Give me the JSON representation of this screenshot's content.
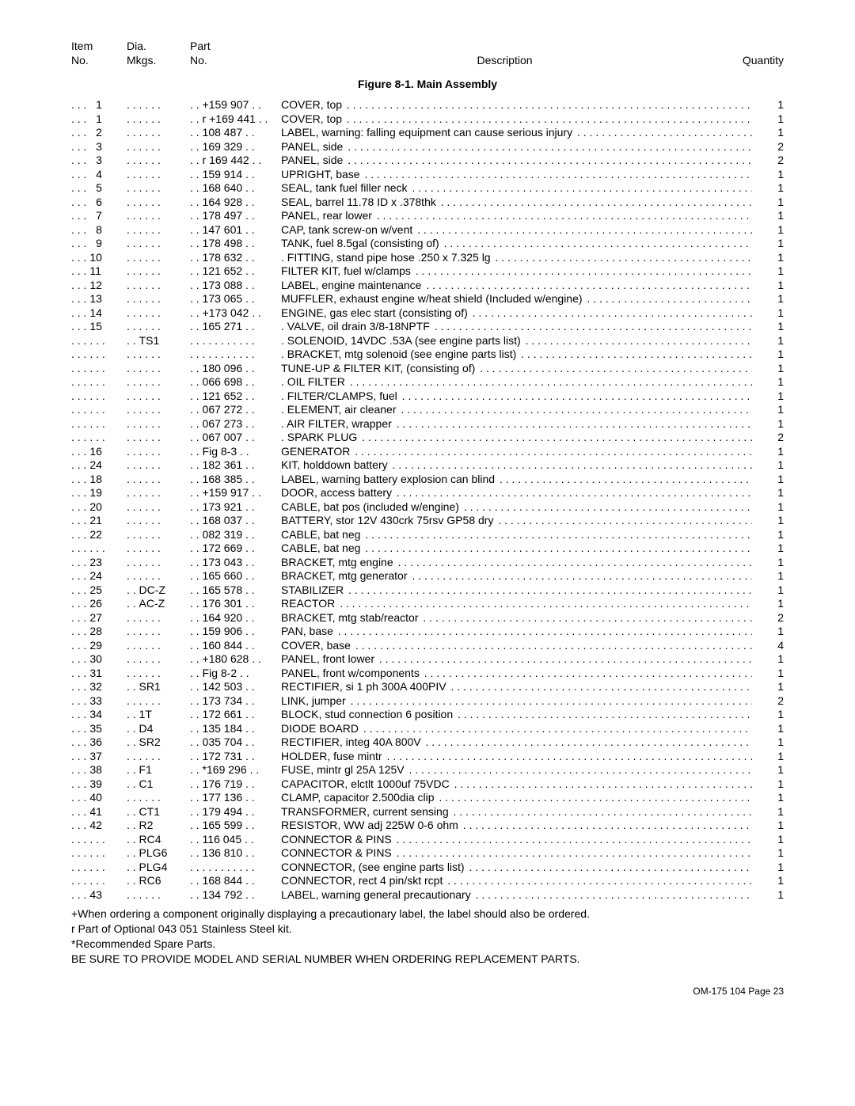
{
  "header": {
    "item1": "Item",
    "item2": "No.",
    "dia1": "Dia.",
    "dia2": "Mkgs.",
    "part1": "Part",
    "part2": "No.",
    "desc": "Description",
    "qty": "Quantity"
  },
  "figure_title": "Figure 8-1. Main Assembly",
  "rows": [
    {
      "item": "1",
      "dia": "",
      "part": "+159 907",
      "desc": "COVER, top",
      "qty": "1"
    },
    {
      "item": "1",
      "dia": "",
      "part": "r +169 441",
      "desc": "COVER, top",
      "qty": "1"
    },
    {
      "item": "2",
      "dia": "",
      "part": "108 487",
      "desc": "LABEL, warning: falling equipment can cause serious injury",
      "qty": "1"
    },
    {
      "item": "3",
      "dia": "",
      "part": "169 329",
      "desc": "PANEL, side",
      "qty": "2"
    },
    {
      "item": "3",
      "dia": "",
      "part": "r 169 442",
      "desc": "PANEL, side",
      "qty": "2"
    },
    {
      "item": "4",
      "dia": "",
      "part": "159 914",
      "desc": "UPRIGHT, base",
      "qty": "1"
    },
    {
      "item": "5",
      "dia": "",
      "part": "168 640",
      "desc": "SEAL, tank fuel filler neck",
      "qty": "1"
    },
    {
      "item": "6",
      "dia": "",
      "part": "164 928",
      "desc": "SEAL, barrel 11.78 ID x .378thk",
      "qty": "1"
    },
    {
      "item": "7",
      "dia": "",
      "part": "178 497",
      "desc": "PANEL, rear lower",
      "qty": "1"
    },
    {
      "item": "8",
      "dia": "",
      "part": "147 601",
      "desc": "CAP, tank screw-on w/vent",
      "qty": "1"
    },
    {
      "item": "9",
      "dia": "",
      "part": "178 498",
      "desc": "TANK, fuel 8.5gal (consisting of)",
      "qty": "1"
    },
    {
      "item": "10",
      "dia": "",
      "part": "178 632",
      "desc": ". FITTING, stand pipe hose .250 x 7.325 lg",
      "qty": "1"
    },
    {
      "item": "11",
      "dia": "",
      "part": "121 652",
      "desc": "FILTER KIT, fuel w/clamps",
      "qty": "1"
    },
    {
      "item": "12",
      "dia": "",
      "part": "173 088",
      "desc": "LABEL, engine maintenance",
      "qty": "1"
    },
    {
      "item": "13",
      "dia": "",
      "part": "173 065",
      "desc": "MUFFLER, exhaust engine w/heat shield (Included w/engine)",
      "qty": "1"
    },
    {
      "item": "14",
      "dia": "",
      "part": "+173 042",
      "desc": "ENGINE, gas elec start (consisting of)",
      "qty": "1"
    },
    {
      "item": "15",
      "dia": "",
      "part": "165 271",
      "desc": ". VALVE, oil drain 3/8-18NPTF",
      "qty": "1"
    },
    {
      "item": "",
      "dia": "TS1",
      "part": "",
      "desc": ". SOLENOID, 14VDC .53A (see engine parts list)",
      "qty": "1"
    },
    {
      "item": "",
      "dia": "",
      "part": "",
      "desc": ". BRACKET, mtg solenoid (see engine parts list)",
      "qty": "1"
    },
    {
      "item": "",
      "dia": "",
      "part": "180 096",
      "desc": "TUNE-UP & FILTER KIT, (consisting of)",
      "qty": "1"
    },
    {
      "item": "",
      "dia": "",
      "part": "066 698",
      "desc": ". OIL FILTER",
      "qty": "1"
    },
    {
      "item": "",
      "dia": "",
      "part": "121 652",
      "desc": ". FILTER/CLAMPS, fuel",
      "qty": "1"
    },
    {
      "item": "",
      "dia": "",
      "part": "067 272",
      "desc": ". ELEMENT, air cleaner",
      "qty": "1"
    },
    {
      "item": "",
      "dia": "",
      "part": "067 273",
      "desc": ". AIR FILTER, wrapper",
      "qty": "1"
    },
    {
      "item": "",
      "dia": "",
      "part": "067 007",
      "desc": ". SPARK PLUG",
      "qty": "2"
    },
    {
      "item": "16",
      "dia": "",
      "part": "Fig 8-3",
      "desc": "GENERATOR",
      "qty": "1"
    },
    {
      "item": "24",
      "dia": "",
      "part": "182 361",
      "desc": "KIT, holddown battery",
      "qty": "1"
    },
    {
      "item": "18",
      "dia": "",
      "part": "168 385",
      "desc": "LABEL, warning battery explosion can blind",
      "qty": "1"
    },
    {
      "item": "19",
      "dia": "",
      "part": "+159 917",
      "desc": "DOOR, access battery",
      "qty": "1"
    },
    {
      "item": "20",
      "dia": "",
      "part": "173 921",
      "desc": "CABLE, bat pos (included w/engine)",
      "qty": "1"
    },
    {
      "item": "21",
      "dia": "",
      "part": "168 037",
      "desc": "BATTERY, stor 12V 430crk 75rsv GP58 dry",
      "qty": "1"
    },
    {
      "item": "22",
      "dia": "",
      "part": "082 319",
      "desc": "CABLE, bat neg",
      "qty": "1"
    },
    {
      "item": "",
      "dia": "",
      "part": "172 669",
      "desc": "CABLE, bat neg",
      "qty": "1"
    },
    {
      "item": "23",
      "dia": "",
      "part": "173 043",
      "desc": "BRACKET, mtg engine",
      "qty": "1"
    },
    {
      "item": "24",
      "dia": "",
      "part": "165 660",
      "desc": "BRACKET, mtg generator",
      "qty": "1"
    },
    {
      "item": "25",
      "dia": "DC-Z",
      "part": "165 578",
      "desc": "STABILIZER",
      "qty": "1"
    },
    {
      "item": "26",
      "dia": "AC-Z",
      "part": "176 301",
      "desc": "REACTOR",
      "qty": "1"
    },
    {
      "item": "27",
      "dia": "",
      "part": "164 920",
      "desc": "BRACKET, mtg stab/reactor",
      "qty": "2"
    },
    {
      "item": "28",
      "dia": "",
      "part": "159 906",
      "desc": "PAN, base",
      "qty": "1"
    },
    {
      "item": "29",
      "dia": "",
      "part": "160 844",
      "desc": "COVER, base",
      "qty": "4"
    },
    {
      "item": "30",
      "dia": "",
      "part": "+180 628",
      "desc": "PANEL, front lower",
      "qty": "1"
    },
    {
      "item": "31",
      "dia": "",
      "part": "Fig 8-2",
      "desc": "PANEL, front w/components",
      "qty": "1"
    },
    {
      "item": "32",
      "dia": "SR1",
      "part": "142 503",
      "desc": "RECTIFIER, si 1 ph 300A 400PIV",
      "qty": "1"
    },
    {
      "item": "33",
      "dia": "",
      "part": "173 734",
      "desc": "LINK, jumper",
      "qty": "2"
    },
    {
      "item": "34",
      "dia": "1T",
      "part": "172 661",
      "desc": "BLOCK, stud connection 6 position",
      "qty": "1"
    },
    {
      "item": "35",
      "dia": "D4",
      "part": "135 184",
      "desc": "DIODE BOARD",
      "qty": "1"
    },
    {
      "item": "36",
      "dia": "SR2",
      "part": "035 704",
      "desc": "RECTIFIER, integ 40A 800V",
      "qty": "1"
    },
    {
      "item": "37",
      "dia": "",
      "part": "172 731",
      "desc": "HOLDER, fuse mintr",
      "qty": "1"
    },
    {
      "item": "38",
      "dia": "F1",
      "part": "*169 296",
      "desc": "FUSE, mintr gl 25A 125V",
      "qty": "1"
    },
    {
      "item": "39",
      "dia": "C1",
      "part": "176 719",
      "desc": "CAPACITOR, elctlt 1000uf 75VDC",
      "qty": "1"
    },
    {
      "item": "40",
      "dia": "",
      "part": "177 136",
      "desc": "CLAMP, capacitor 2.500dia clip",
      "qty": "1"
    },
    {
      "item": "41",
      "dia": "CT1",
      "part": "179 494",
      "desc": "TRANSFORMER, current sensing",
      "qty": "1"
    },
    {
      "item": "42",
      "dia": "R2",
      "part": "165 599",
      "desc": "RESISTOR, WW adj 225W 0-6 ohm",
      "qty": "1"
    },
    {
      "item": "",
      "dia": "RC4",
      "part": "116 045",
      "desc": "CONNECTOR & PINS",
      "qty": "1"
    },
    {
      "item": "",
      "dia": "PLG6",
      "part": "136 810",
      "desc": "CONNECTOR & PINS",
      "qty": "1"
    },
    {
      "item": "",
      "dia": "PLG4",
      "part": "",
      "desc": "CONNECTOR, (see engine parts list)",
      "qty": "1"
    },
    {
      "item": "",
      "dia": "RC6",
      "part": "168 844",
      "desc": "CONNECTOR, rect 4 pin/skt rcpt",
      "qty": "1"
    },
    {
      "item": "43",
      "dia": "",
      "part": "134 792",
      "desc": "LABEL, warning general precautionary",
      "qty": "1"
    }
  ],
  "notes": [
    "+When ordering a component originally displaying a precautionary label, the label should also be ordered.",
    "r  Part of Optional 043 051 Stainless Steel kit.",
    "*Recommended Spare Parts.",
    "BE SURE TO PROVIDE MODEL AND SERIAL NUMBER WHEN ORDERING REPLACEMENT PARTS."
  ],
  "footer": "OM-175 104 Page 23"
}
